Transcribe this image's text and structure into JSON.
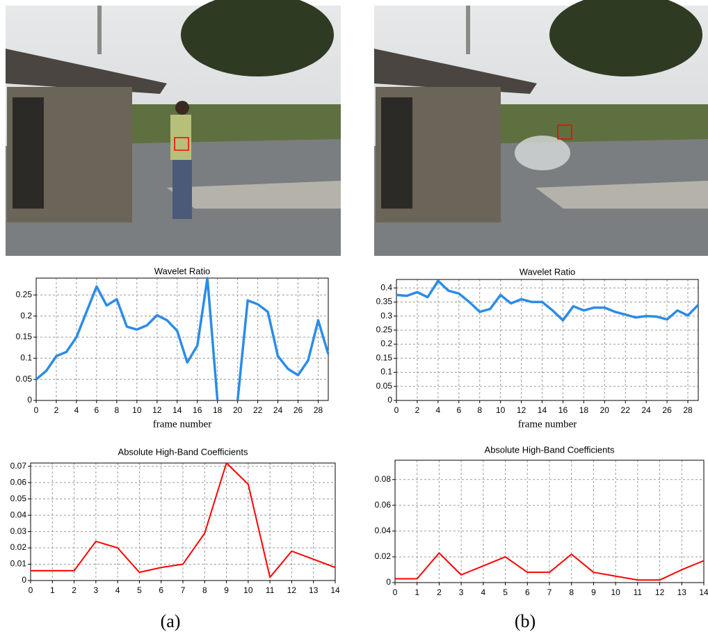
{
  "chart_data": [
    {
      "type": "line",
      "title": "Wavelet Ratio",
      "xlabel": "frame number",
      "x": [
        0,
        1,
        2,
        3,
        4,
        5,
        6,
        7,
        8,
        9,
        10,
        11,
        12,
        13,
        14,
        15,
        16,
        17,
        18,
        19,
        20,
        21,
        22,
        23,
        24,
        25,
        26,
        27,
        28,
        29
      ],
      "values": [
        0.05,
        0.07,
        0.105,
        0.115,
        0.15,
        0.21,
        0.27,
        0.225,
        0.24,
        0.175,
        0.168,
        0.178,
        0.202,
        0.19,
        0.165,
        0.09,
        0.13,
        0.29,
        0,
        null,
        0,
        0.237,
        0.228,
        0.21,
        0.105,
        0.075,
        0.06,
        0.095,
        0.19,
        0.11
      ],
      "color": "#2b8ce8",
      "xlim": [
        0,
        29
      ],
      "ylim": [
        0,
        0.29
      ],
      "xticks": [
        0,
        2,
        4,
        6,
        8,
        10,
        12,
        14,
        16,
        18,
        20,
        22,
        24,
        26,
        28
      ],
      "yticks": [
        0,
        0.05,
        0.1,
        0.15,
        0.2,
        0.25
      ],
      "grid": true
    },
    {
      "type": "line",
      "title": "Wavelet Ratio",
      "xlabel": "frame number",
      "x": [
        0,
        1,
        2,
        3,
        4,
        5,
        6,
        7,
        8,
        9,
        10,
        11,
        12,
        13,
        14,
        15,
        16,
        17,
        18,
        19,
        20,
        21,
        22,
        23,
        24,
        25,
        26,
        27,
        28,
        29
      ],
      "values": [
        0.375,
        0.372,
        0.385,
        0.367,
        0.425,
        0.39,
        0.38,
        0.35,
        0.315,
        0.325,
        0.375,
        0.345,
        0.36,
        0.35,
        0.35,
        0.32,
        0.285,
        0.335,
        0.32,
        0.33,
        0.33,
        0.315,
        0.305,
        0.295,
        0.3,
        0.298,
        0.288,
        0.32,
        0.302,
        0.34
      ],
      "color": "#2b8ce8",
      "xlim": [
        0,
        29
      ],
      "ylim": [
        0,
        0.43
      ],
      "xticks": [
        0,
        2,
        4,
        6,
        8,
        10,
        12,
        14,
        16,
        18,
        20,
        22,
        24,
        26,
        28
      ],
      "yticks": [
        0,
        0.05,
        0.1,
        0.15,
        0.2,
        0.25,
        0.3,
        0.35,
        0.4
      ],
      "grid": true
    },
    {
      "type": "line",
      "title": "Absolute High-Band Coefficients",
      "x": [
        0,
        1,
        2,
        3,
        4,
        5,
        6,
        7,
        8,
        9,
        10,
        11,
        12,
        13,
        14
      ],
      "values": [
        0.006,
        0.006,
        0.006,
        0.024,
        0.02,
        0.005,
        0.008,
        0.01,
        0.029,
        0.072,
        0.059,
        0.002,
        0.018,
        0.013,
        0.008
      ],
      "color": "#ff0000",
      "xlim": [
        0,
        14
      ],
      "ylim": [
        0,
        0.072
      ],
      "xticks": [
        0,
        1,
        2,
        3,
        4,
        5,
        6,
        7,
        8,
        9,
        10,
        11,
        12,
        13,
        14
      ],
      "yticks": [
        0,
        0.01,
        0.02,
        0.03,
        0.04,
        0.05,
        0.06,
        0.07
      ],
      "grid": true
    },
    {
      "type": "line",
      "title": "Absolute High-Band Coefficients",
      "x": [
        0,
        1,
        2,
        3,
        4,
        5,
        6,
        7,
        8,
        9,
        10,
        11,
        12,
        13,
        14
      ],
      "values": [
        0.003,
        0.003,
        0.023,
        0.006,
        0.013,
        0.02,
        0.008,
        0.008,
        0.022,
        0.008,
        0.005,
        0.002,
        0.002,
        0.01,
        0.017
      ],
      "color": "#ff0000",
      "xlim": [
        0,
        14
      ],
      "ylim": [
        0,
        0.095
      ],
      "xticks": [
        0,
        1,
        2,
        3,
        4,
        5,
        6,
        7,
        8,
        9,
        10,
        11,
        12,
        13,
        14
      ],
      "yticks": [
        0,
        0.02,
        0.04,
        0.06,
        0.08
      ],
      "grid": true
    }
  ],
  "panel_labels": [
    "(a)",
    "(b)"
  ]
}
